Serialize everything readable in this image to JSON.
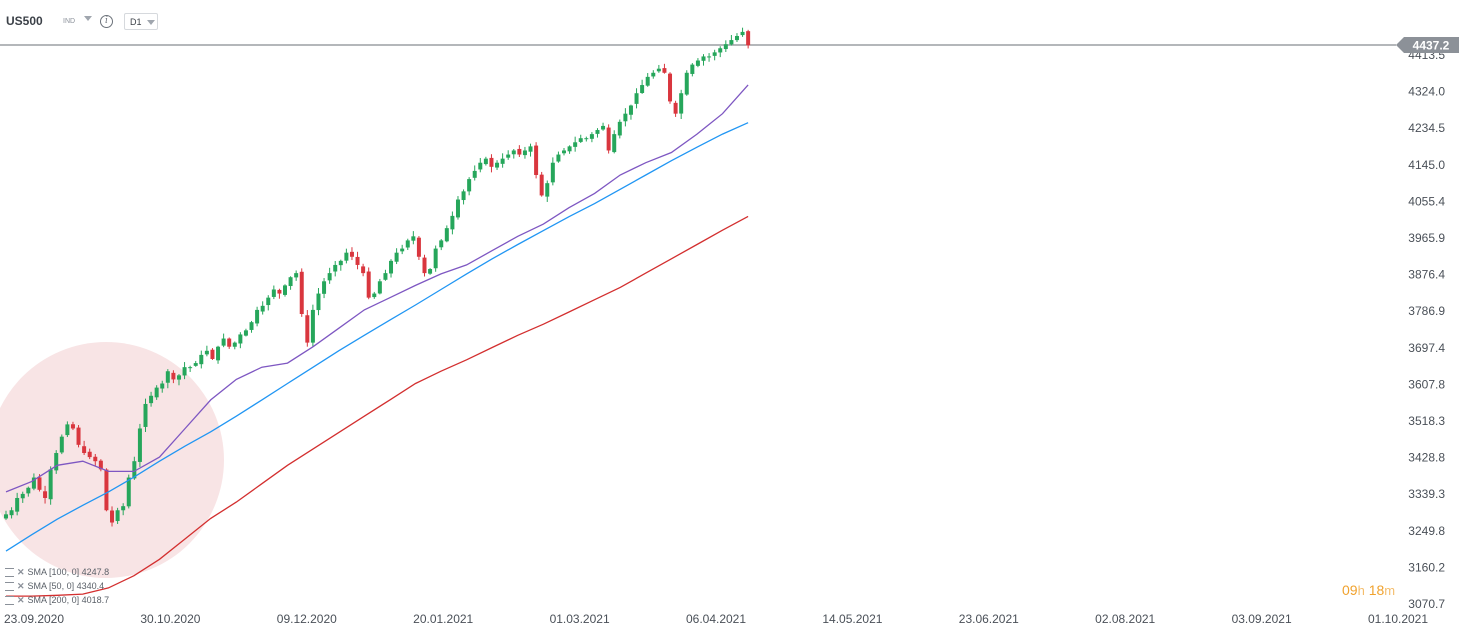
{
  "header": {
    "symbol": "US500",
    "instrument_type": "IND",
    "timeframe": "D1",
    "info_icon": "info-icon"
  },
  "current_price": "4437.2",
  "countdown": {
    "hours": "09",
    "h_unit": "h",
    "minutes": "18",
    "m_unit": "m"
  },
  "legend": [
    {
      "text": "SMA [100, 0] 4247.8",
      "color": "#2196f3"
    },
    {
      "text": "SMA [50, 0] 4340.4",
      "color": "#7e57c2"
    },
    {
      "text": "SMA [200, 0] 4018.7",
      "color": "#d32f2f"
    }
  ],
  "colors": {
    "up": "#26a65b",
    "down": "#d9363e",
    "sma50": "#7e57c2",
    "sma100": "#2196f3",
    "sma200": "#d32f2f",
    "highlight": "#f6dbdc"
  },
  "chart_data": {
    "type": "candlestick",
    "x_tick_labels": [
      "23.09.2020",
      "30.10.2020",
      "09.12.2020",
      "20.01.2021",
      "01.03.2021",
      "06.04.2021",
      "14.05.2021",
      "23.06.2021",
      "02.08.2021",
      "03.09.2021",
      "01.10.2021"
    ],
    "y_tick_labels": [
      "4413.5",
      "4324.0",
      "4234.5",
      "4145.0",
      "4055.4",
      "3965.9",
      "3876.4",
      "3786.9",
      "3697.4",
      "3607.8",
      "3518.3",
      "3428.8",
      "3339.3",
      "3249.8",
      "3160.2",
      "3070.7"
    ],
    "ylim": [
      3070.7,
      4413.5
    ],
    "last_price": 4437.2,
    "close_path": [
      3290,
      3300,
      3330,
      3340,
      3355,
      3380,
      3350,
      3330,
      3400,
      3440,
      3480,
      3510,
      3500,
      3460,
      3440,
      3430,
      3420,
      3400,
      3300,
      3270,
      3300,
      3310,
      3380,
      3420,
      3500,
      3560,
      3580,
      3600,
      3610,
      3640,
      3620,
      3630,
      3650,
      3650,
      3660,
      3680,
      3690,
      3670,
      3700,
      3720,
      3700,
      3710,
      3730,
      3740,
      3760,
      3790,
      3800,
      3820,
      3840,
      3830,
      3850,
      3870,
      3880,
      3780,
      3710,
      3790,
      3830,
      3860,
      3880,
      3900,
      3910,
      3930,
      3920,
      3900,
      3880,
      3820,
      3830,
      3860,
      3880,
      3910,
      3930,
      3940,
      3960,
      3970,
      3920,
      3880,
      3890,
      3940,
      3960,
      3990,
      4020,
      4060,
      4080,
      4110,
      4130,
      4150,
      4160,
      4140,
      4150,
      4160,
      4170,
      4180,
      4170,
      4180,
      4190,
      4120,
      4070,
      4100,
      4150,
      4170,
      4180,
      4190,
      4200,
      4210,
      4210,
      4220,
      4230,
      4240,
      4180,
      4220,
      4250,
      4270,
      4290,
      4320,
      4340,
      4360,
      4370,
      4380,
      4370,
      4300,
      4270,
      4320,
      4370,
      4390,
      4400,
      4410,
      4410,
      4420,
      4430,
      4440,
      4450,
      4460,
      4470,
      4437
    ],
    "series": [
      {
        "name": "SMA [100, 0] 4247.8",
        "last_value": 4247.8,
        "values": [
          3200,
          3240,
          3278,
          3312,
          3345,
          3381,
          3420,
          3457,
          3492,
          3530,
          3570,
          3610,
          3650,
          3690,
          3728,
          3765,
          3802,
          3840,
          3878,
          3915,
          3950,
          3984,
          4018,
          4050,
          4085,
          4120,
          4155,
          4188,
          4220,
          4247.8
        ]
      },
      {
        "name": "SMA [50, 0] 4340.4",
        "last_value": 4340.4,
        "values": [
          3345,
          3370,
          3410,
          3420,
          3395,
          3395,
          3430,
          3500,
          3570,
          3620,
          3650,
          3660,
          3700,
          3745,
          3790,
          3820,
          3850,
          3878,
          3900,
          3935,
          3970,
          4000,
          4040,
          4075,
          4120,
          4150,
          4175,
          4220,
          4270,
          4340.4
        ]
      },
      {
        "name": "SMA [200, 0] 4018.7",
        "last_value": 4018.7,
        "values": [
          3090,
          3090,
          3092,
          3095,
          3110,
          3140,
          3180,
          3230,
          3280,
          3320,
          3365,
          3410,
          3450,
          3490,
          3530,
          3570,
          3610,
          3640,
          3668,
          3698,
          3728,
          3755,
          3785,
          3815,
          3845,
          3880,
          3915,
          3950,
          3985,
          4018.7
        ]
      }
    ],
    "grid": false,
    "legend_position": "bottom-left"
  }
}
